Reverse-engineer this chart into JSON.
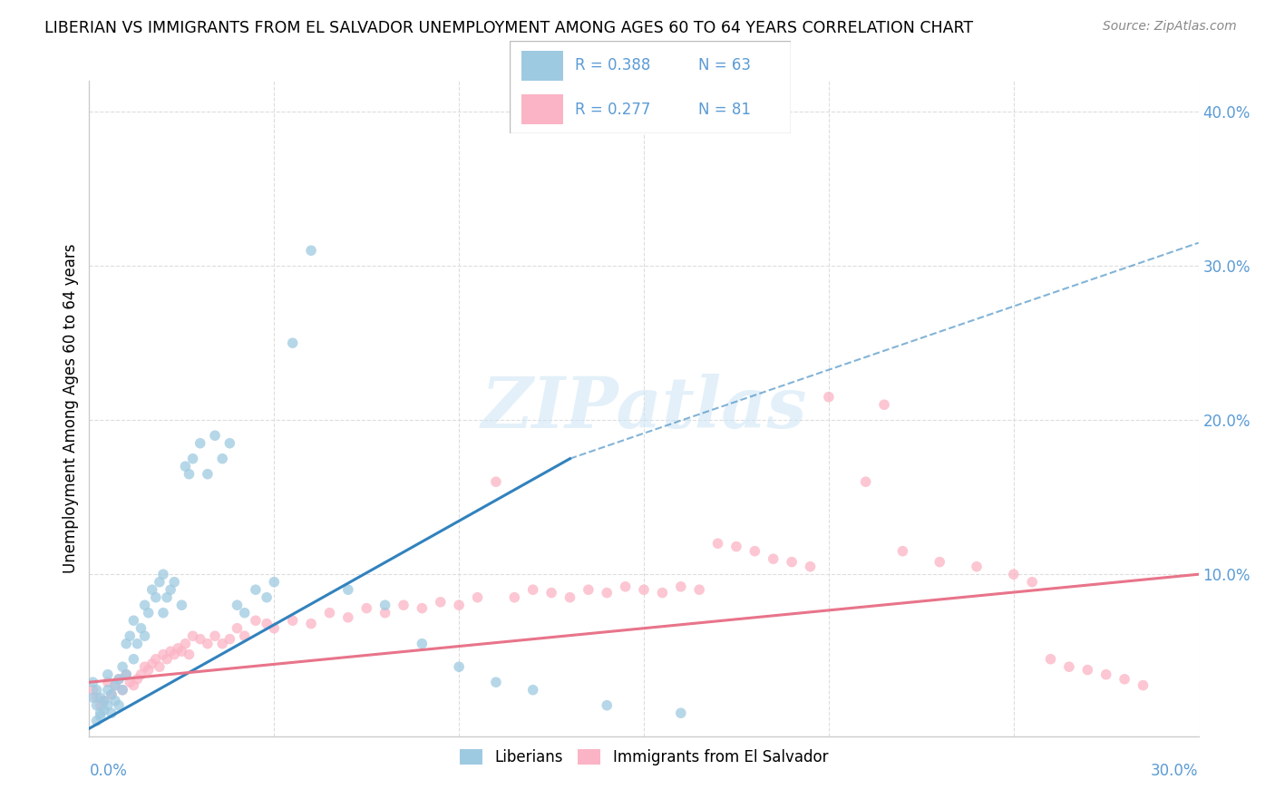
{
  "title": "LIBERIAN VS IMMIGRANTS FROM EL SALVADOR UNEMPLOYMENT AMONG AGES 60 TO 64 YEARS CORRELATION CHART",
  "source": "Source: ZipAtlas.com",
  "ylabel": "Unemployment Among Ages 60 to 64 years",
  "xlim": [
    0.0,
    0.3
  ],
  "ylim": [
    -0.005,
    0.42
  ],
  "color_liberian": "#9ecae1",
  "color_salvador": "#fbb4c5",
  "line_color_liberian": "#3182bd",
  "line_color_salvador": "#e8748a",
  "scatter_alpha": 0.75,
  "scatter_size": 70,
  "liberian_x": [
    0.001,
    0.001,
    0.002,
    0.002,
    0.002,
    0.003,
    0.003,
    0.003,
    0.004,
    0.004,
    0.005,
    0.005,
    0.005,
    0.006,
    0.006,
    0.007,
    0.007,
    0.008,
    0.008,
    0.009,
    0.009,
    0.01,
    0.01,
    0.011,
    0.012,
    0.012,
    0.013,
    0.014,
    0.015,
    0.015,
    0.016,
    0.017,
    0.018,
    0.019,
    0.02,
    0.02,
    0.021,
    0.022,
    0.023,
    0.025,
    0.026,
    0.027,
    0.028,
    0.03,
    0.032,
    0.034,
    0.036,
    0.038,
    0.04,
    0.042,
    0.045,
    0.048,
    0.05,
    0.055,
    0.06,
    0.07,
    0.08,
    0.09,
    0.1,
    0.11,
    0.12,
    0.14,
    0.16
  ],
  "liberian_y": [
    0.03,
    0.02,
    0.025,
    0.015,
    0.005,
    0.01,
    0.02,
    0.008,
    0.018,
    0.012,
    0.035,
    0.025,
    0.015,
    0.022,
    0.01,
    0.028,
    0.018,
    0.032,
    0.015,
    0.025,
    0.04,
    0.035,
    0.055,
    0.06,
    0.045,
    0.07,
    0.055,
    0.065,
    0.08,
    0.06,
    0.075,
    0.09,
    0.085,
    0.095,
    0.075,
    0.1,
    0.085,
    0.09,
    0.095,
    0.08,
    0.17,
    0.165,
    0.175,
    0.185,
    0.165,
    0.19,
    0.175,
    0.185,
    0.08,
    0.075,
    0.09,
    0.085,
    0.095,
    0.25,
    0.31,
    0.09,
    0.08,
    0.055,
    0.04,
    0.03,
    0.025,
    0.015,
    0.01
  ],
  "salvador_x": [
    0.001,
    0.002,
    0.003,
    0.004,
    0.005,
    0.006,
    0.007,
    0.008,
    0.009,
    0.01,
    0.011,
    0.012,
    0.013,
    0.014,
    0.015,
    0.016,
    0.017,
    0.018,
    0.019,
    0.02,
    0.021,
    0.022,
    0.023,
    0.024,
    0.025,
    0.026,
    0.027,
    0.028,
    0.03,
    0.032,
    0.034,
    0.036,
    0.038,
    0.04,
    0.042,
    0.045,
    0.048,
    0.05,
    0.055,
    0.06,
    0.065,
    0.07,
    0.075,
    0.08,
    0.085,
    0.09,
    0.095,
    0.1,
    0.105,
    0.11,
    0.115,
    0.12,
    0.125,
    0.13,
    0.135,
    0.14,
    0.145,
    0.15,
    0.155,
    0.16,
    0.165,
    0.17,
    0.175,
    0.18,
    0.185,
    0.19,
    0.195,
    0.2,
    0.21,
    0.215,
    0.22,
    0.23,
    0.24,
    0.25,
    0.255,
    0.26,
    0.265,
    0.27,
    0.275,
    0.28,
    0.285
  ],
  "salvador_y": [
    0.025,
    0.02,
    0.015,
    0.018,
    0.03,
    0.022,
    0.028,
    0.032,
    0.025,
    0.035,
    0.03,
    0.028,
    0.032,
    0.035,
    0.04,
    0.038,
    0.042,
    0.045,
    0.04,
    0.048,
    0.045,
    0.05,
    0.048,
    0.052,
    0.05,
    0.055,
    0.048,
    0.06,
    0.058,
    0.055,
    0.06,
    0.055,
    0.058,
    0.065,
    0.06,
    0.07,
    0.068,
    0.065,
    0.07,
    0.068,
    0.075,
    0.072,
    0.078,
    0.075,
    0.08,
    0.078,
    0.082,
    0.08,
    0.085,
    0.16,
    0.085,
    0.09,
    0.088,
    0.085,
    0.09,
    0.088,
    0.092,
    0.09,
    0.088,
    0.092,
    0.09,
    0.12,
    0.118,
    0.115,
    0.11,
    0.108,
    0.105,
    0.215,
    0.16,
    0.21,
    0.115,
    0.108,
    0.105,
    0.1,
    0.095,
    0.045,
    0.04,
    0.038,
    0.035,
    0.032,
    0.028
  ],
  "line_liberian_x0": 0.0,
  "line_liberian_y0": 0.0,
  "line_liberian_x1": 0.13,
  "line_liberian_y1": 0.175,
  "line_liberian_dash_x1": 0.3,
  "line_liberian_dash_y1": 0.315,
  "line_salvador_x0": 0.0,
  "line_salvador_y0": 0.03,
  "line_salvador_x1": 0.3,
  "line_salvador_y1": 0.1
}
